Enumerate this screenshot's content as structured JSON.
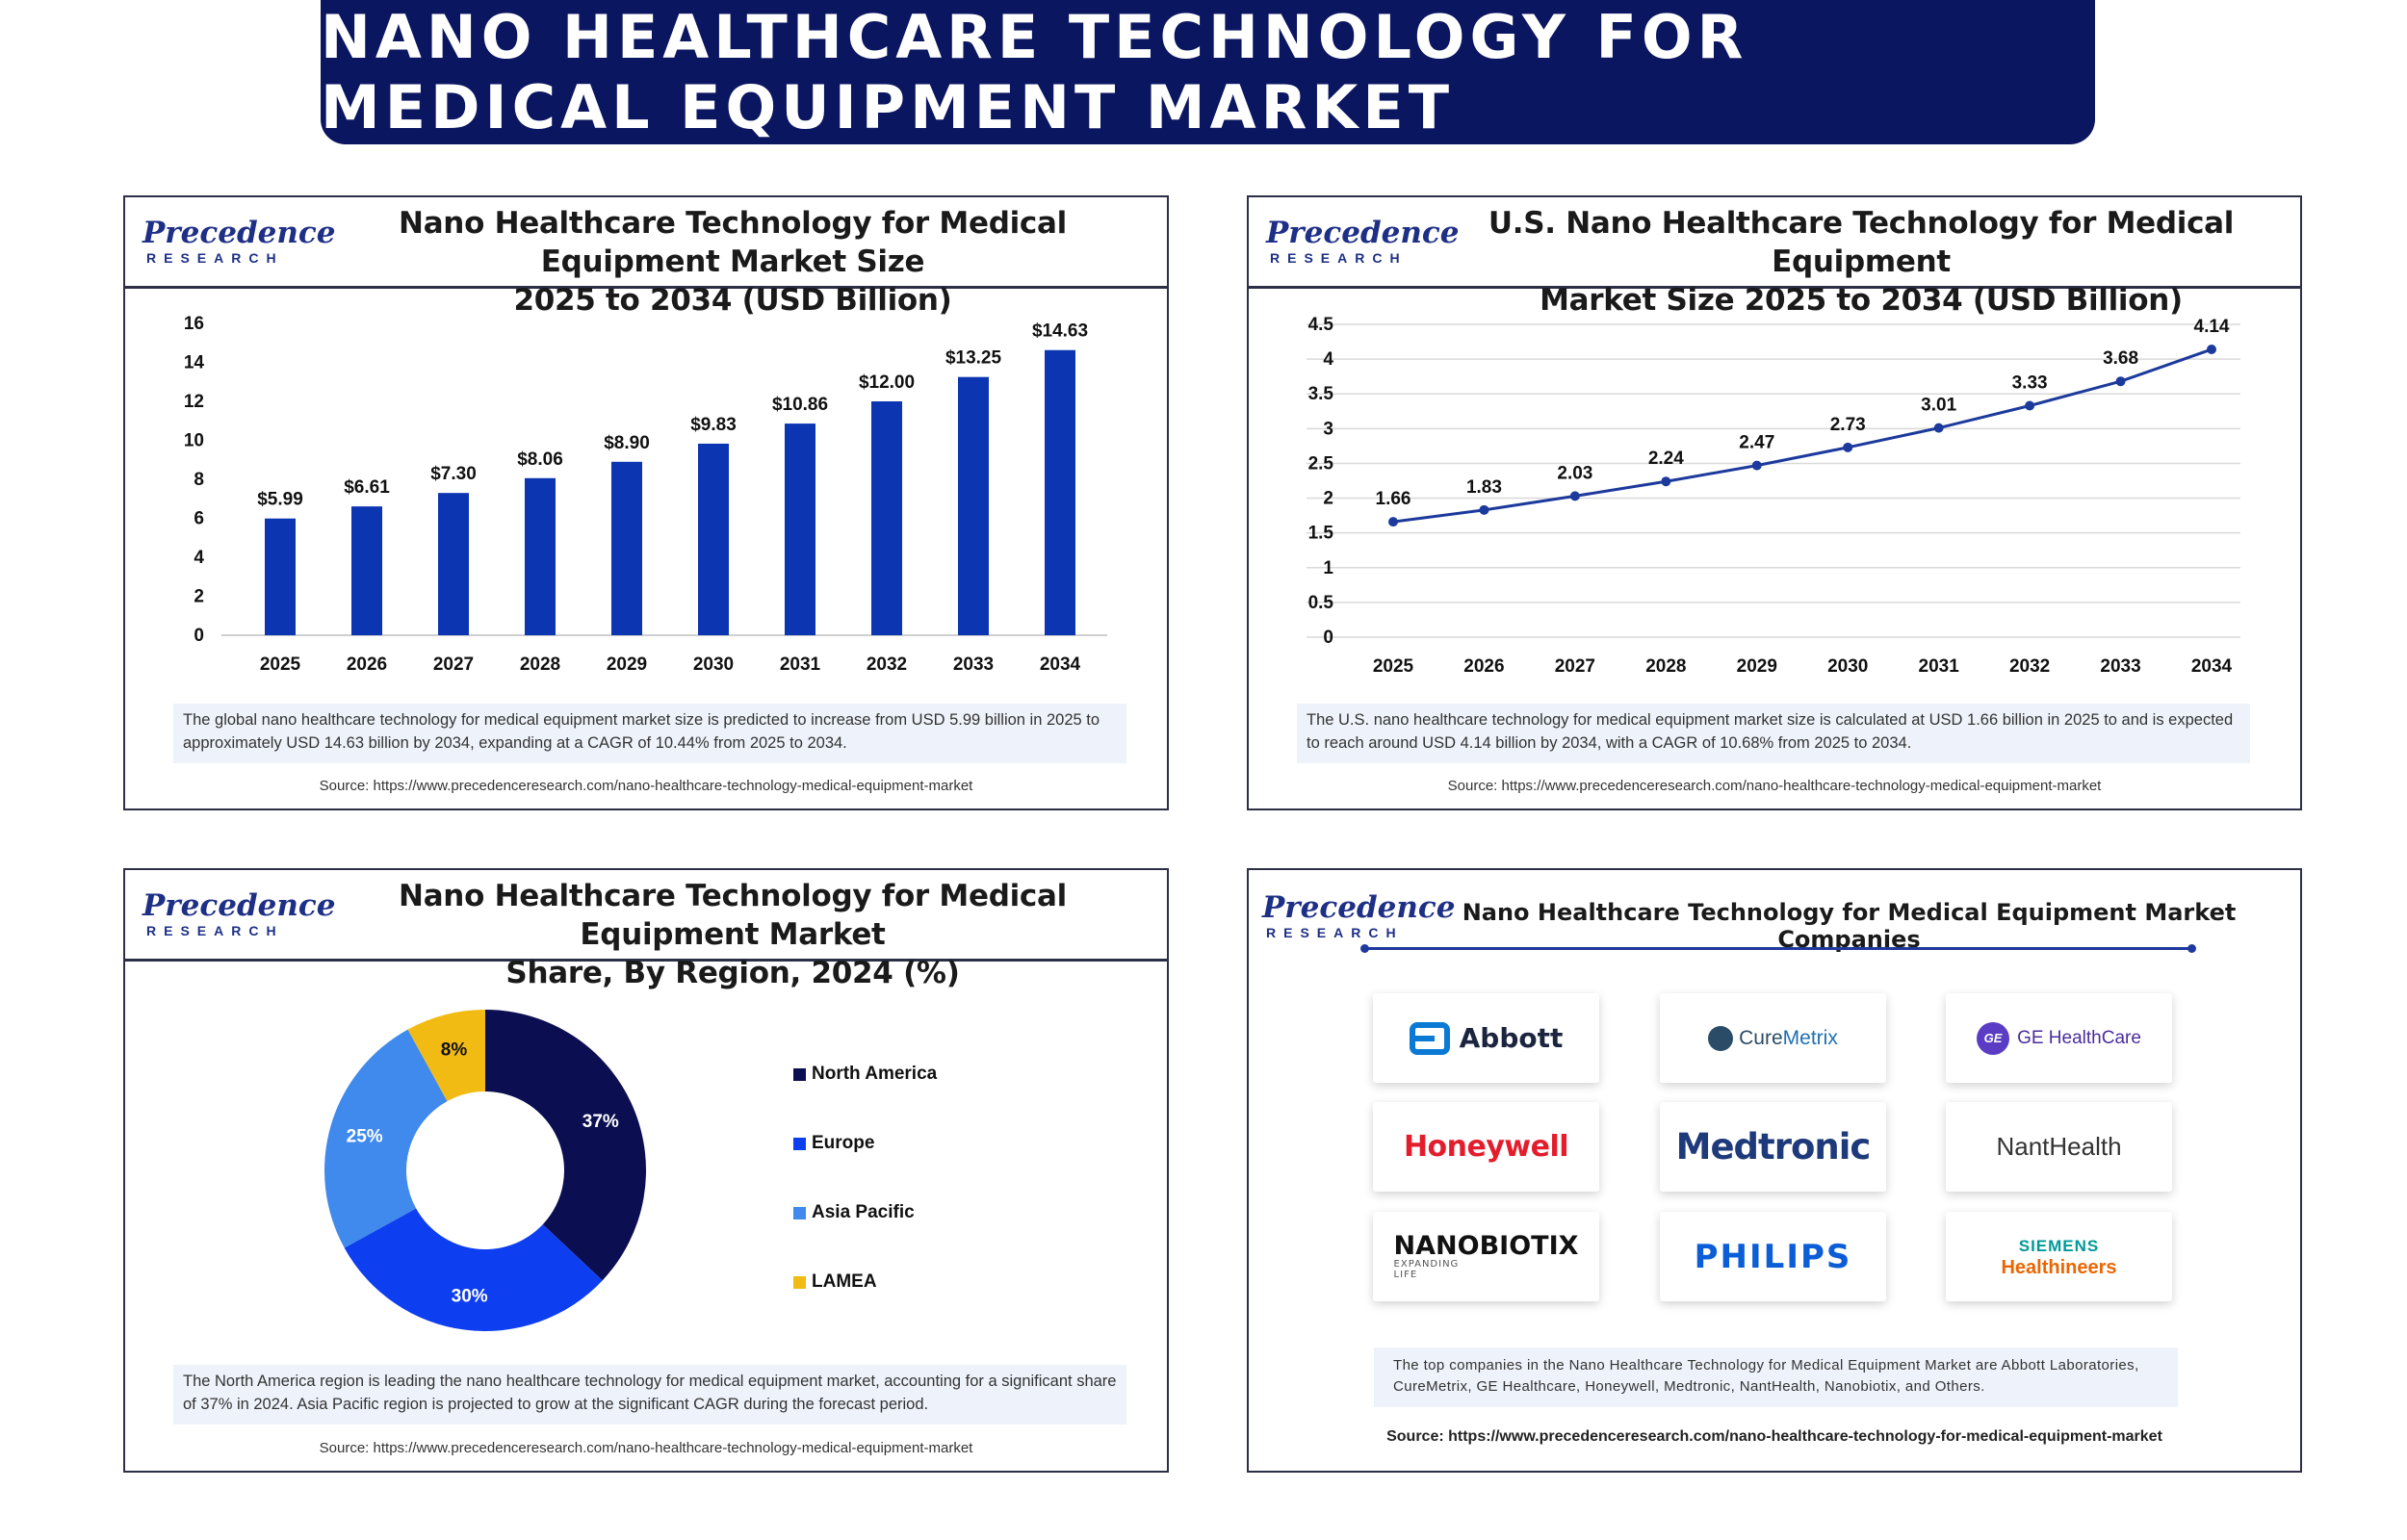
{
  "main_title": "NANO HEALTHCARE TECHNOLOGY FOR MEDICAL EQUIPMENT MARKET",
  "logo": {
    "name": "Precedence",
    "sub": "RESEARCH"
  },
  "colors": {
    "banner": "#0b1660",
    "bar": "#0c35b2",
    "line": "#1c3a9c",
    "north_america": "#0b0e50",
    "europe": "#0d3ef0",
    "asia_pacific": "#3f8aec",
    "lamea": "#f2bb13"
  },
  "panel1": {
    "title_line1": "Nano Healthcare Technology for Medical Equipment Market Size",
    "title_line2": "2025 to 2034 (USD Billion)",
    "note": "The global nano healthcare technology for medical equipment market size is predicted to increase from USD 5.99 billion in 2025 to approximately USD 14.63 billion by 2034, expanding at a CAGR of 10.44% from 2025 to 2034.",
    "source": "Source: https://www.precedenceresearch.com/nano-healthcare-technology-medical-equipment-market"
  },
  "panel2": {
    "title_line1": "U.S. Nano Healthcare Technology for Medical Equipment",
    "title_line2": "Market Size 2025 to 2034 (USD Billion)",
    "note": "The U.S. nano healthcare technology for medical equipment market size is calculated at USD 1.66 billion in 2025 to and is expected to reach around USD 4.14 billion by 2034, with a CAGR of 10.68% from 2025 to 2034.",
    "source": "Source: https://www.precedenceresearch.com/nano-healthcare-technology-medical-equipment-market"
  },
  "panel3": {
    "title_line1": "Nano Healthcare Technology for Medical Equipment Market",
    "title_line2": "Share, By Region, 2024 (%)",
    "note": "The North America region is leading the nano healthcare technology for medical equipment market, accounting for a significant share of 37% in 2024. Asia Pacific region is projected to grow at the significant CAGR during the forecast period.",
    "source": "Source: https://www.precedenceresearch.com/nano-healthcare-technology-medical-equipment-market"
  },
  "panel4": {
    "title": "Nano Healthcare Technology for Medical Equipment Market Companies",
    "companies": {
      "abbott": "Abbott",
      "cure_a": "Cure",
      "cure_b": "Metrix",
      "ge": "GE HealthCare",
      "ge_mark": "GE",
      "honeywell": "Honeywell",
      "medtronic": "Medtronic",
      "nant": "NantHealth",
      "nano": "NANOBIOTIX",
      "nano_sub1": "EXPANDING",
      "nano_sub2": "LIFE",
      "philips": "PHILIPS",
      "siemens1": "SIEMENS",
      "siemens2": "Healthineers"
    },
    "note": "The top companies in the Nano Healthcare Technology for Medical Equipment Market are Abbott Laboratories, CureMetrix, GE Healthcare, Honeywell, Medtronic, NantHealth, Nanobiotix, and Others.",
    "source": "Source: https://www.precedenceresearch.com/nano-healthcare-technology-for-medical-equipment-market"
  },
  "chart_data": [
    {
      "type": "bar",
      "title": "Nano Healthcare Technology for Medical Equipment Market Size 2025 to 2034 (USD Billion)",
      "categories": [
        "2025",
        "2026",
        "2027",
        "2028",
        "2029",
        "2030",
        "2031",
        "2032",
        "2033",
        "2034"
      ],
      "values": [
        5.99,
        6.61,
        7.3,
        8.06,
        8.9,
        9.83,
        10.86,
        12.0,
        13.25,
        14.63
      ],
      "labels": [
        "$5.99",
        "$6.61",
        "$7.30",
        "$8.06",
        "$8.90",
        "$9.83",
        "$10.86",
        "$12.00",
        "$13.25",
        "$14.63"
      ],
      "yticks": [
        "0",
        "2",
        "4",
        "6",
        "8",
        "10",
        "12",
        "14",
        "16"
      ],
      "ylim": [
        0,
        16
      ]
    },
    {
      "type": "line",
      "title": "U.S. Nano Healthcare Technology for Medical Equipment Market Size 2025 to 2034 (USD Billion)",
      "categories": [
        "2025",
        "2026",
        "2027",
        "2028",
        "2029",
        "2030",
        "2031",
        "2032",
        "2033",
        "2034"
      ],
      "values": [
        1.66,
        1.83,
        2.03,
        2.24,
        2.47,
        2.73,
        3.01,
        3.33,
        3.68,
        4.14
      ],
      "labels": [
        "1.66",
        "1.83",
        "2.03",
        "2.24",
        "2.47",
        "2.73",
        "3.01",
        "3.33",
        "3.68",
        "4.14"
      ],
      "yticks": [
        "0",
        "0.5",
        "1",
        "1.5",
        "2",
        "2.5",
        "3",
        "3.5",
        "4",
        "4.5"
      ],
      "ylim": [
        0,
        4.5
      ]
    },
    {
      "type": "pie",
      "title": "Nano Healthcare Technology for Medical Equipment Market Share, By Region, 2024 (%)",
      "categories": [
        "North America",
        "Europe",
        "Asia Pacific",
        "LAMEA"
      ],
      "values": [
        37,
        30,
        25,
        8
      ],
      "labels": [
        "37%",
        "30%",
        "25%",
        "8%"
      ]
    }
  ]
}
